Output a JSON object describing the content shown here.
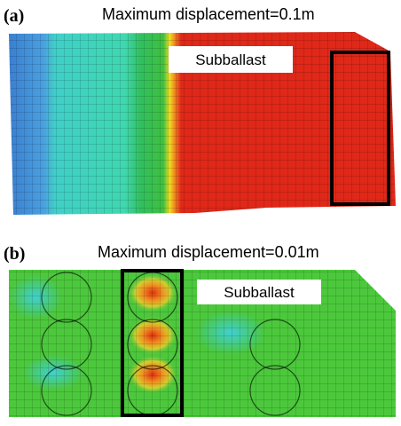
{
  "panels": [
    {
      "label": "(a)",
      "title": "Maximum displacement=0.1m",
      "annotation": "Subballast"
    },
    {
      "label": "(b)",
      "title": "Maximum displacement=0.01m",
      "annotation": "Subballast"
    }
  ]
}
